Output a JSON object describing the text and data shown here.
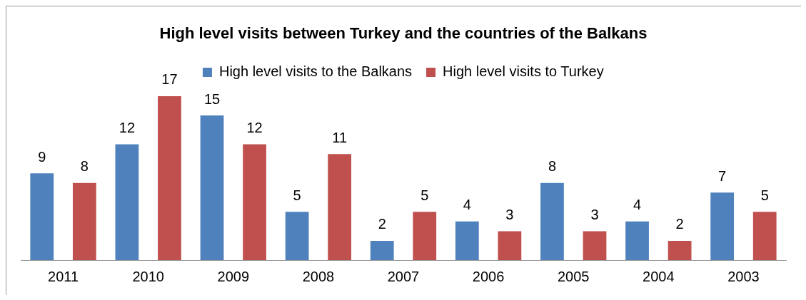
{
  "chart_data": {
    "type": "bar",
    "title": "High level visits between Turkey and the countries of the Balkans",
    "categories": [
      "2011",
      "2010",
      "2009",
      "2008",
      "2007",
      "2006",
      "2005",
      "2004",
      "2003"
    ],
    "series": [
      {
        "name": "High level visits to the Balkans",
        "color": "#4f81bd",
        "values": [
          9,
          12,
          15,
          5,
          2,
          4,
          8,
          4,
          7
        ]
      },
      {
        "name": "High level visits to Turkey",
        "color": "#c0504d",
        "values": [
          8,
          17,
          12,
          11,
          5,
          3,
          3,
          2,
          5
        ]
      }
    ],
    "data_labels": true,
    "legend": "top",
    "grid": false
  }
}
